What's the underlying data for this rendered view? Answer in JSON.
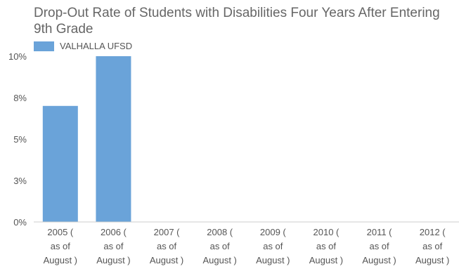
{
  "chart_data": {
    "type": "bar",
    "title": "Drop-Out Rate of Students with Disabilities Four Years After Entering 9th Grade",
    "xlabel": "",
    "ylabel": "",
    "ylim": [
      0,
      10
    ],
    "y_ticks": [
      {
        "value": 0,
        "label": "0%"
      },
      {
        "value": 2.5,
        "label": "3%"
      },
      {
        "value": 5,
        "label": "5%"
      },
      {
        "value": 7.5,
        "label": "8%"
      },
      {
        "value": 10,
        "label": "10%"
      }
    ],
    "categories": [
      [
        "2005 (",
        "as of",
        "August )"
      ],
      [
        "2006 (",
        "as of",
        "August )"
      ],
      [
        "2007 (",
        "as of",
        "August )"
      ],
      [
        "2008 (",
        "as of",
        "August )"
      ],
      [
        "2009 (",
        "as of",
        "August )"
      ],
      [
        "2010 (",
        "as of",
        "August )"
      ],
      [
        "2011 (",
        "as of",
        "August )"
      ],
      [
        "2012 (",
        "as of",
        "August )"
      ]
    ],
    "series": [
      {
        "name": "VALHALLA UFSD",
        "color": "#6aa3d9",
        "values": [
          7.0,
          10.0,
          0,
          0,
          0,
          0,
          0,
          0
        ]
      }
    ],
    "grid": false,
    "legend": "top-left"
  }
}
